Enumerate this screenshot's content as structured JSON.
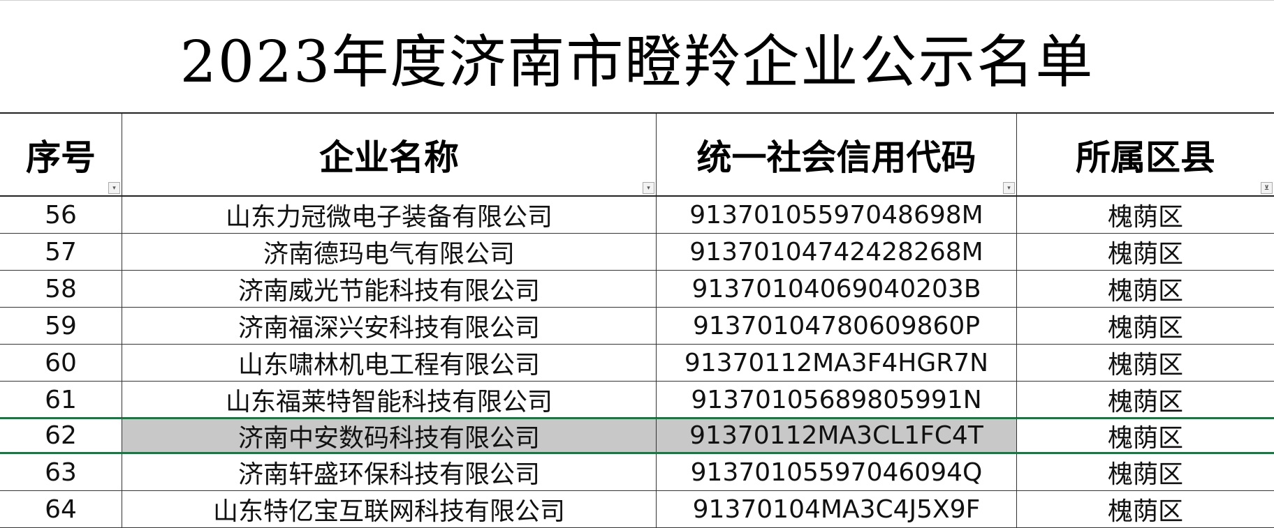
{
  "title": "2023年度济南市瞪羚企业公示名单",
  "columns": [
    "序号",
    "企业名称",
    "统一社会信用代码",
    "所属区县"
  ],
  "filter_icons": [
    "dropdown-arrow",
    "dropdown-arrow",
    "dropdown-arrow",
    "filter-active"
  ],
  "selected_row": "62",
  "colors": {
    "selection_border": "#217346",
    "selection_fill": "#c8c8c8"
  },
  "rows": [
    [
      "56",
      "山东力冠微电子装备有限公司",
      "91370105597048698M",
      "槐荫区"
    ],
    [
      "57",
      "济南德玛电气有限公司",
      "91370104742428268M",
      "槐荫区"
    ],
    [
      "58",
      "济南威光节能科技有限公司",
      "91370104069040203B",
      "槐荫区"
    ],
    [
      "59",
      "济南福深兴安科技有限公司",
      "91370104780609860P",
      "槐荫区"
    ],
    [
      "60",
      "山东啸林机电工程有限公司",
      "91370112MA3F4HGR7N",
      "槐荫区"
    ],
    [
      "61",
      "山东福莱特智能科技有限公司",
      "91370105689805991N",
      "槐荫区"
    ],
    [
      "62",
      "济南中安数码科技有限公司",
      "91370112MA3CL1FC4T",
      "槐荫区"
    ],
    [
      "63",
      "济南轩盛环保科技有限公司",
      "91370105597046094Q",
      "槐荫区"
    ],
    [
      "64",
      "山东特亿宝互联网科技有限公司",
      "91370104MA3C4J5X9F",
      "槐荫区"
    ]
  ]
}
